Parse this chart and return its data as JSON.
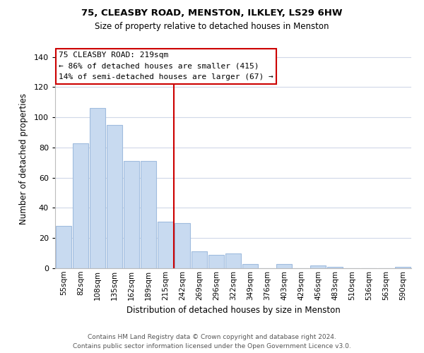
{
  "title": "75, CLEASBY ROAD, MENSTON, ILKLEY, LS29 6HW",
  "subtitle": "Size of property relative to detached houses in Menston",
  "xlabel": "Distribution of detached houses by size in Menston",
  "ylabel": "Number of detached properties",
  "bar_labels": [
    "55sqm",
    "82sqm",
    "108sqm",
    "135sqm",
    "162sqm",
    "189sqm",
    "215sqm",
    "242sqm",
    "269sqm",
    "296sqm",
    "322sqm",
    "349sqm",
    "376sqm",
    "403sqm",
    "429sqm",
    "456sqm",
    "483sqm",
    "510sqm",
    "536sqm",
    "563sqm",
    "590sqm"
  ],
  "bar_values": [
    28,
    83,
    106,
    95,
    71,
    71,
    31,
    30,
    11,
    9,
    10,
    3,
    0,
    3,
    0,
    2,
    1,
    0,
    0,
    0,
    1
  ],
  "bar_color": "#c8daf0",
  "bar_edge_color": "#a0bcde",
  "highlight_index": 6,
  "annotation_title": "75 CLEASBY ROAD: 219sqm",
  "annotation_line1": "← 86% of detached houses are smaller (415)",
  "annotation_line2": "14% of semi-detached houses are larger (67) →",
  "annotation_box_color": "#ffffff",
  "annotation_box_edge_color": "#cc0000",
  "ylim": [
    0,
    145
  ],
  "yticks": [
    0,
    20,
    40,
    60,
    80,
    100,
    120,
    140
  ],
  "footer1": "Contains HM Land Registry data © Crown copyright and database right 2024.",
  "footer2": "Contains public sector information licensed under the Open Government Licence v3.0.",
  "background_color": "#ffffff",
  "grid_color": "#d0d8e8"
}
